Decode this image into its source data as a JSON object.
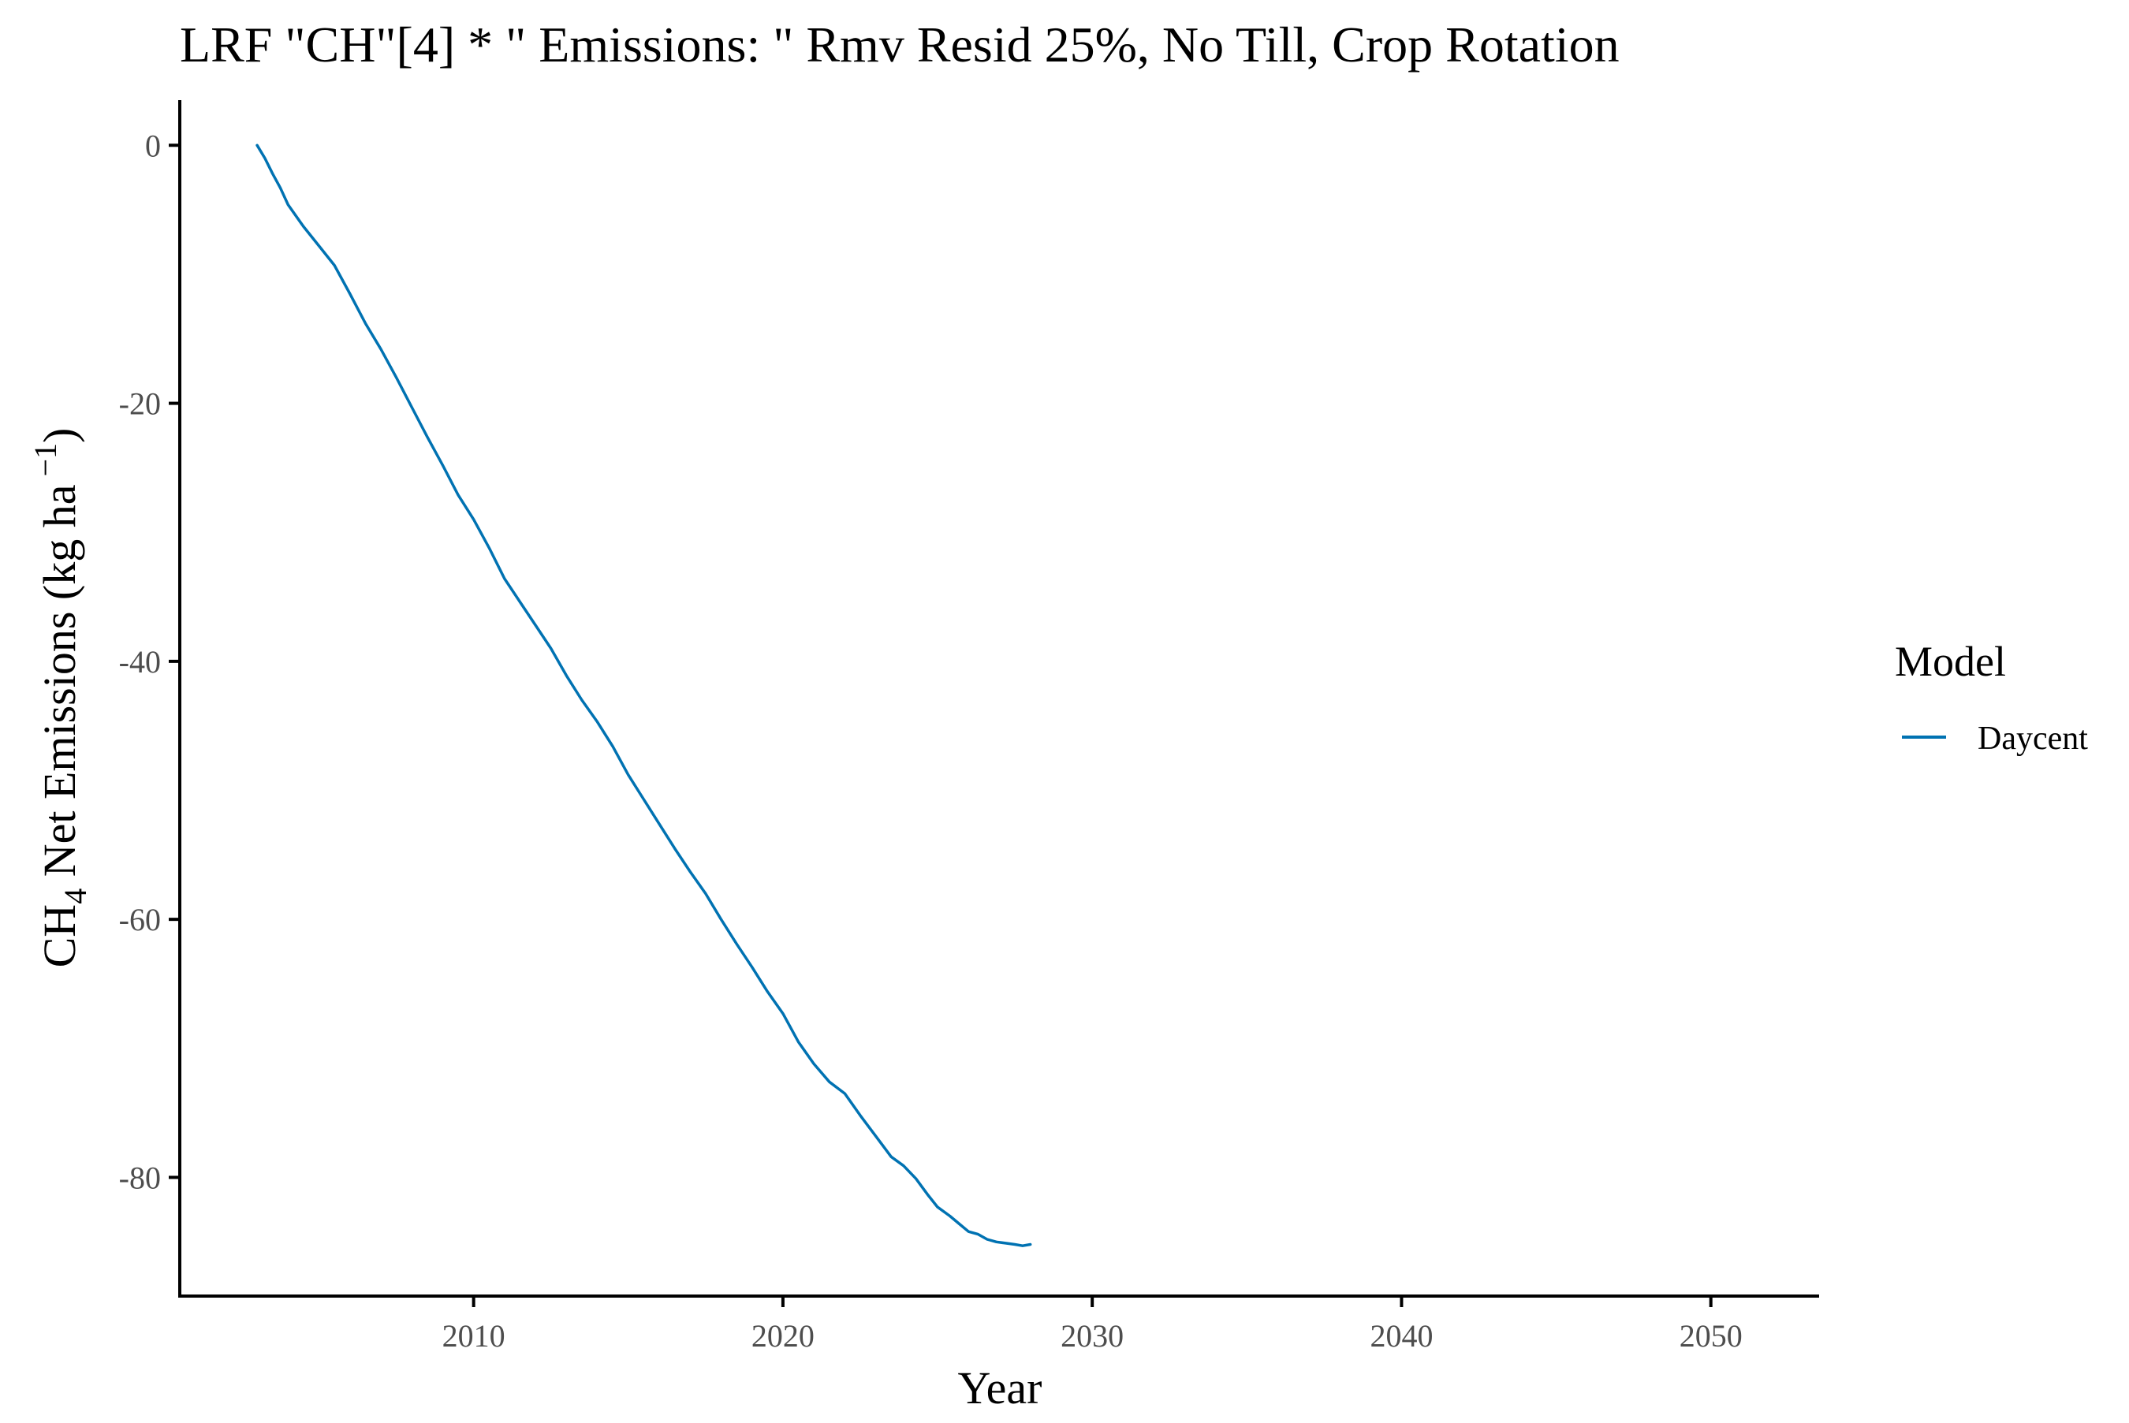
{
  "chart_data": {
    "type": "line",
    "title": "LRF \"CH\"[4] * \" Emissions: \" Rmv Resid 25%, No Till, Crop Rotation",
    "xlabel": "Year",
    "ylabel": {
      "prefix": "CH",
      "subscript": "4",
      "middle": " Net Emissions (kg ha",
      "superscript": " −1",
      "suffix": ")"
    },
    "xlim": [
      2000.5,
      2053.5
    ],
    "ylim": [
      -89.2,
      3.5
    ],
    "x_ticks": [
      2010,
      2020,
      2030,
      2040,
      2050
    ],
    "x_tick_labels": [
      "2010",
      "2020",
      "2030",
      "2040",
      "2050"
    ],
    "y_ticks": [
      0,
      -20,
      -40,
      -60,
      -80
    ],
    "y_tick_labels": [
      "0",
      "-20",
      "-40",
      "-60",
      "-80"
    ],
    "grid": false,
    "legend": {
      "title": "Model",
      "position": "right"
    },
    "series": [
      {
        "name": "Daycent",
        "color": "#0072b2",
        "x": [
          2003.0,
          2003.25,
          2003.5,
          2003.75,
          2004.0,
          2004.5,
          2005.0,
          2005.5,
          2006.0,
          2006.5,
          2007.0,
          2007.5,
          2008.0,
          2008.5,
          2009.0,
          2009.5,
          2010.0,
          2010.5,
          2011.0,
          2011.5,
          2012.0,
          2012.5,
          2013.0,
          2013.5,
          2014.0,
          2014.5,
          2015.0,
          2015.5,
          2016.0,
          2016.5,
          2017.0,
          2017.5,
          2018.0,
          2018.5,
          2019.0,
          2019.5,
          2020.0,
          2020.5,
          2021.0,
          2021.5,
          2022.0,
          2022.5,
          2023.0,
          2023.5,
          2023.9,
          2024.3,
          2024.7,
          2025.0,
          2025.4,
          2025.7,
          2026.0,
          2026.3,
          2026.6,
          2026.9,
          2027.2,
          2027.5,
          2027.75,
          2028.0
        ],
        "y": [
          0.0,
          -1.0,
          -2.2,
          -3.3,
          -4.6,
          -6.3,
          -7.8,
          -9.3,
          -11.5,
          -13.8,
          -15.8,
          -18.0,
          -20.3,
          -22.6,
          -24.8,
          -27.1,
          -29.0,
          -31.2,
          -33.6,
          -35.4,
          -37.2,
          -39.0,
          -41.1,
          -43.0,
          -44.7,
          -46.6,
          -48.8,
          -50.7,
          -52.6,
          -54.5,
          -56.3,
          -58.0,
          -60.0,
          -61.9,
          -63.7,
          -65.6,
          -67.3,
          -69.5,
          -71.2,
          -72.6,
          -73.5,
          -75.2,
          -76.8,
          -78.4,
          -79.1,
          -80.1,
          -81.4,
          -82.3,
          -83.0,
          -83.6,
          -84.2,
          -84.4,
          -84.8,
          -85.0,
          -85.1,
          -85.2,
          -85.3,
          -85.2
        ]
      }
    ]
  }
}
